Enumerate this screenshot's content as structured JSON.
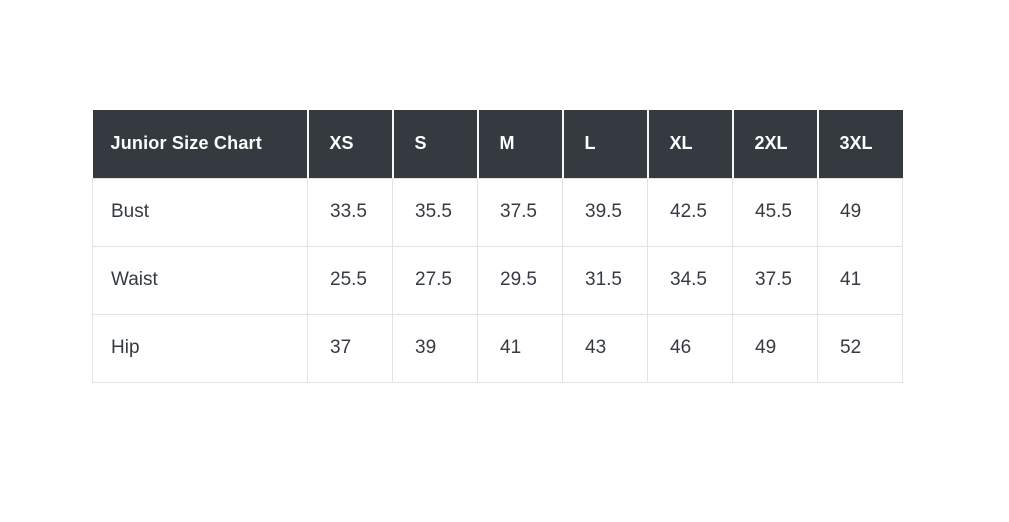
{
  "colors": {
    "header_bg": "#343a40",
    "header_text": "#ffffff",
    "body_text": "#363b42",
    "body_border": "#e2e2e2",
    "page_bg": "#ffffff"
  },
  "chart_data": {
    "type": "table",
    "title": "Junior Size Chart",
    "columns": [
      "Junior Size Chart",
      "XS",
      "S",
      "M",
      "L",
      "XL",
      "2XL",
      "3XL"
    ],
    "rows": [
      {
        "label": "Bust",
        "values": [
          "33.5",
          "35.5",
          "37.5",
          "39.5",
          "42.5",
          "45.5",
          "49"
        ]
      },
      {
        "label": "Waist",
        "values": [
          "25.5",
          "27.5",
          "29.5",
          "31.5",
          "34.5",
          "37.5",
          "41"
        ]
      },
      {
        "label": "Hip",
        "values": [
          "37",
          "39",
          "41",
          "43",
          "46",
          "49",
          "52"
        ]
      }
    ]
  }
}
